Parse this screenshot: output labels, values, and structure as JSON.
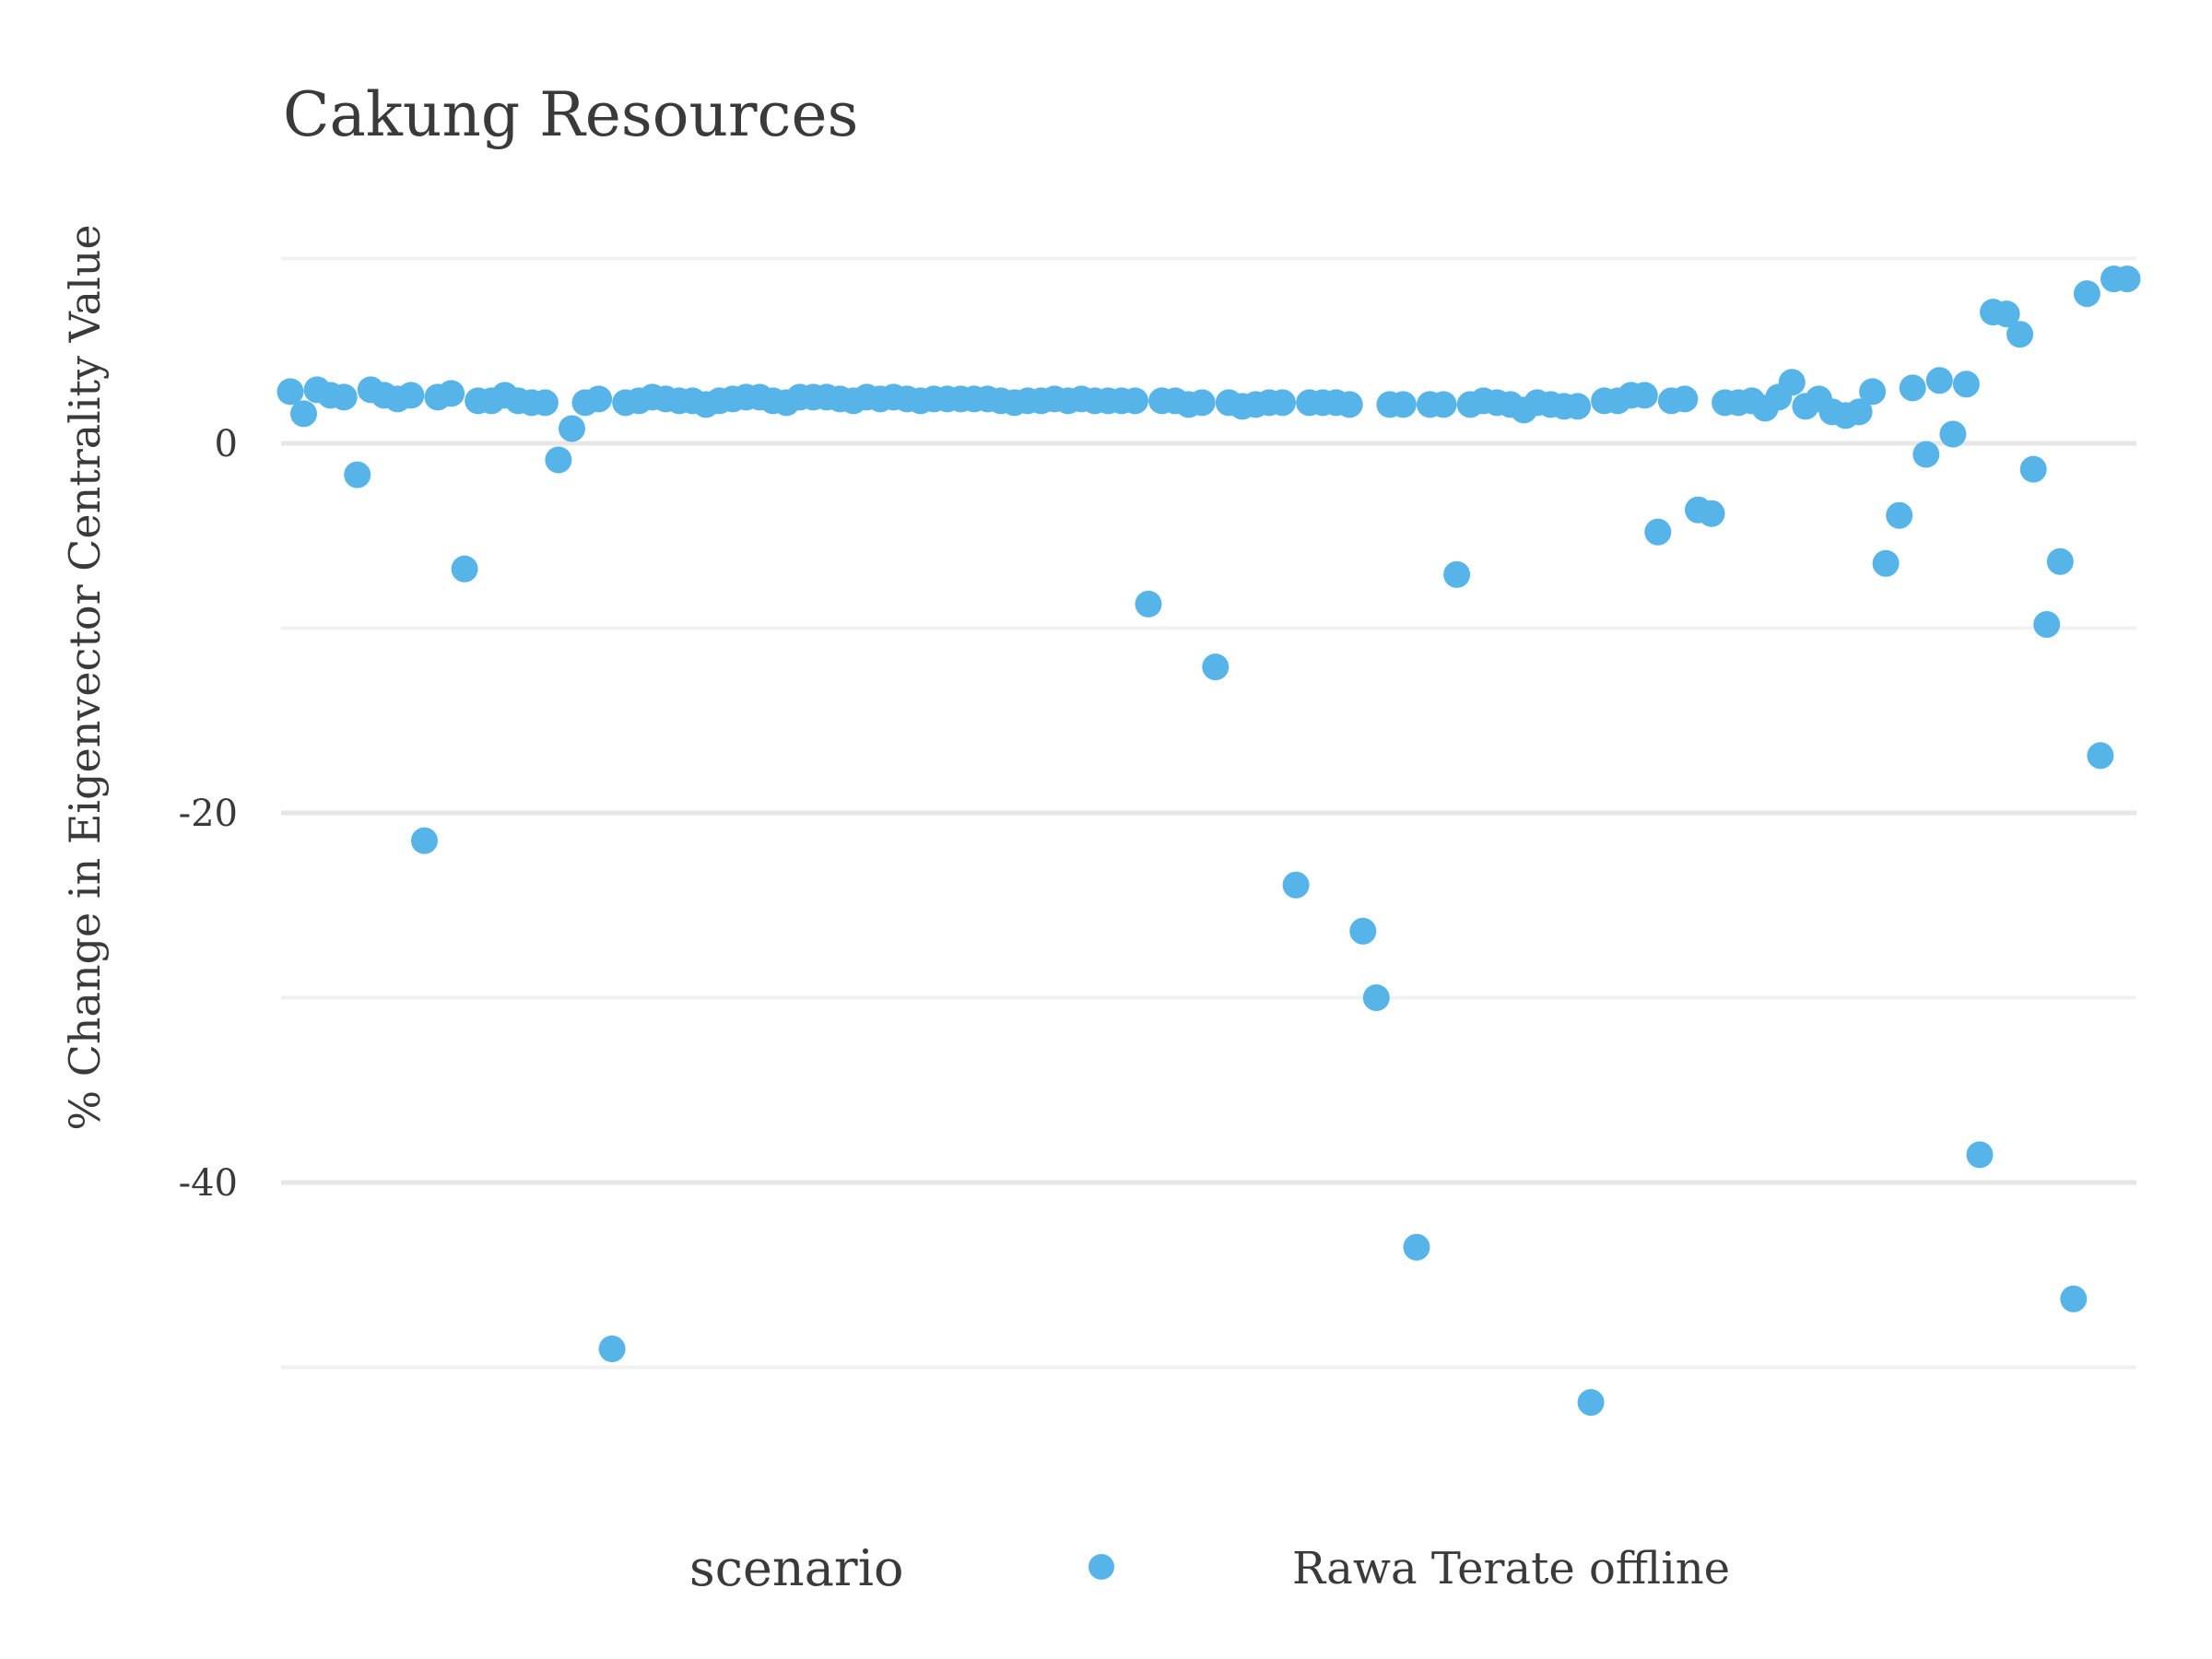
{
  "chart_data": {
    "type": "scatter",
    "title": "Cakung Resources",
    "xlabel": "",
    "ylabel": "% Change in Eigenvector Centrality Value",
    "ylim": [
      -56,
      10
    ],
    "y_ticks": [
      0,
      -20,
      -40
    ],
    "y_tick_labels": [
      "0",
      "-20",
      "-40"
    ],
    "y_minor_ticks": [
      10,
      -10,
      -30,
      -50
    ],
    "grid": true,
    "legend": {
      "title": "scenario",
      "position": "bottom"
    },
    "series": [
      {
        "name": "Rawa Terate offline",
        "color": "#56b4e9",
        "x": [
          1,
          2,
          3,
          4,
          5,
          6,
          7,
          8,
          9,
          10,
          11,
          12,
          13,
          14,
          15,
          16,
          17,
          18,
          19,
          20,
          21,
          22,
          23,
          24,
          25,
          26,
          27,
          28,
          29,
          30,
          31,
          32,
          33,
          34,
          35,
          36,
          37,
          38,
          39,
          40,
          41,
          42,
          43,
          44,
          45,
          46,
          47,
          48,
          49,
          50,
          51,
          52,
          53,
          54,
          55,
          56,
          57,
          58,
          59,
          60,
          61,
          62,
          63,
          64,
          65,
          66,
          67,
          68,
          69,
          70,
          71,
          72,
          73,
          74,
          75,
          76,
          77,
          78,
          79,
          80,
          81,
          82,
          83,
          84,
          85,
          86,
          87,
          88,
          89,
          90,
          91,
          92,
          93,
          94,
          95,
          96,
          97,
          98,
          99,
          100,
          101,
          102,
          103,
          104,
          105,
          106,
          107,
          108,
          109,
          110,
          111,
          112,
          113,
          114,
          115,
          116,
          117,
          118,
          119,
          120,
          121,
          122,
          123,
          124,
          125,
          126,
          127,
          128,
          129,
          130,
          131,
          132,
          133,
          134,
          135,
          136,
          137,
          138
        ],
        "y": [
          2.8,
          1.6,
          2.9,
          2.6,
          2.5,
          -1.7,
          2.9,
          2.6,
          2.4,
          2.6,
          -21.5,
          2.5,
          2.7,
          -6.8,
          2.3,
          2.3,
          2.6,
          2.3,
          2.2,
          2.2,
          -0.9,
          0.8,
          2.2,
          2.4,
          -49,
          2.2,
          2.3,
          2.5,
          2.4,
          2.3,
          2.3,
          2.1,
          2.3,
          2.4,
          2.5,
          2.5,
          2.3,
          2.2,
          2.5,
          2.5,
          2.5,
          2.4,
          2.3,
          2.5,
          2.4,
          2.5,
          2.4,
          2.3,
          2.4,
          2.4,
          2.4,
          2.4,
          2.4,
          2.3,
          2.2,
          2.3,
          2.3,
          2.4,
          2.3,
          2.4,
          2.3,
          2.3,
          2.3,
          2.3,
          -8.7,
          2.3,
          2.3,
          2.1,
          2.2,
          -12.1,
          2.2,
          2.0,
          2.1,
          2.2,
          2.2,
          -23.9,
          2.2,
          2.2,
          2.2,
          2.1,
          -26.4,
          -30,
          2.1,
          2.1,
          -43.5,
          2.1,
          2.1,
          -7.1,
          2.1,
          2.3,
          2.2,
          2.1,
          1.8,
          2.2,
          2.1,
          2.0,
          2.0,
          -51.9,
          2.3,
          2.3,
          2.6,
          2.6,
          -4.8,
          2.3,
          2.4,
          -3.6,
          -3.8,
          2.2,
          2.2,
          2.3,
          1.9,
          2.5,
          3.3,
          2.0,
          2.4,
          1.7,
          1.5,
          1.7,
          2.8,
          -6.5,
          -3.9,
          3.0,
          -0.6,
          3.4,
          0.5,
          3.2,
          -38.5,
          7.1,
          7.0,
          5.9,
          -1.4,
          -9.8,
          -6.4,
          -46.3,
          8.1,
          -16.9,
          8.9,
          8.9
        ]
      }
    ]
  }
}
